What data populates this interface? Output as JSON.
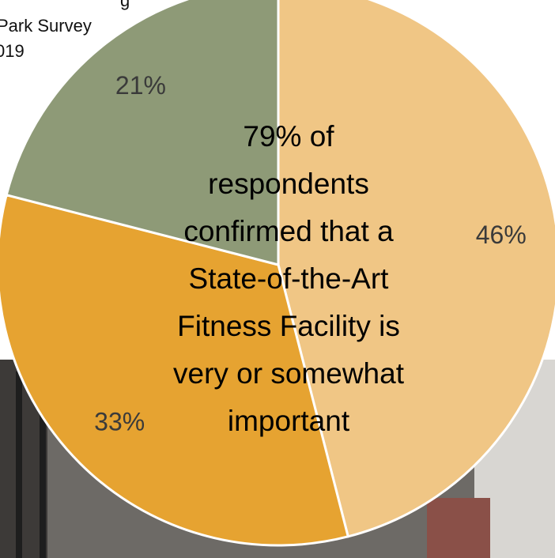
{
  "chart_data": {
    "type": "pie",
    "subtitle": [
      "g",
      "Park Survey",
      "019"
    ],
    "values": [
      46,
      33,
      21
    ],
    "value_labels": [
      "46%",
      "33%",
      "21%"
    ],
    "colors": [
      "#f0c685",
      "#e6a331",
      "#8e9a77"
    ],
    "annotation": [
      "79% of",
      "respondents",
      "confirmed that a",
      "State-of-the-Art",
      "Fitness Facility is",
      "very or somewhat",
      "important"
    ]
  }
}
